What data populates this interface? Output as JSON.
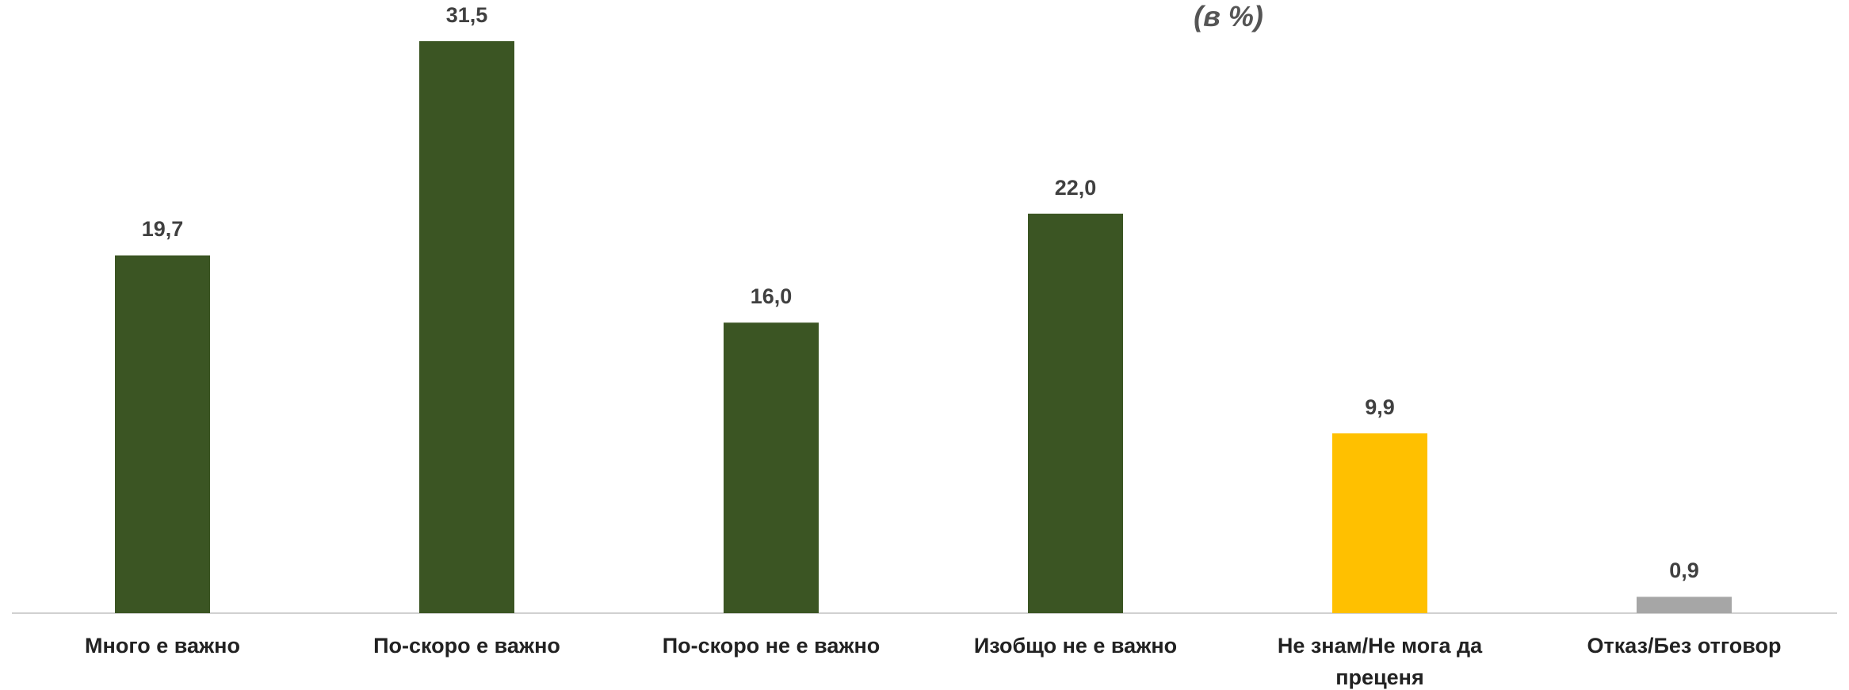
{
  "chart_data": {
    "type": "bar",
    "title": "(в %)",
    "categories": [
      "Много е важно",
      "По-скоро е важно",
      "По-скоро не е важно",
      "Изобщо не е важно",
      "Не знам/Не мога да преценя",
      "Отказ/Без отговор"
    ],
    "values": [
      19.7,
      31.5,
      16.0,
      22.0,
      9.9,
      0.9
    ],
    "value_labels": [
      "19,7",
      "31,5",
      "16,0",
      "22,0",
      "9,9",
      "0,9"
    ],
    "colors": [
      "#3b5523",
      "#3b5523",
      "#3b5523",
      "#3b5523",
      "#ffc000",
      "#a6a6a6"
    ]
  }
}
